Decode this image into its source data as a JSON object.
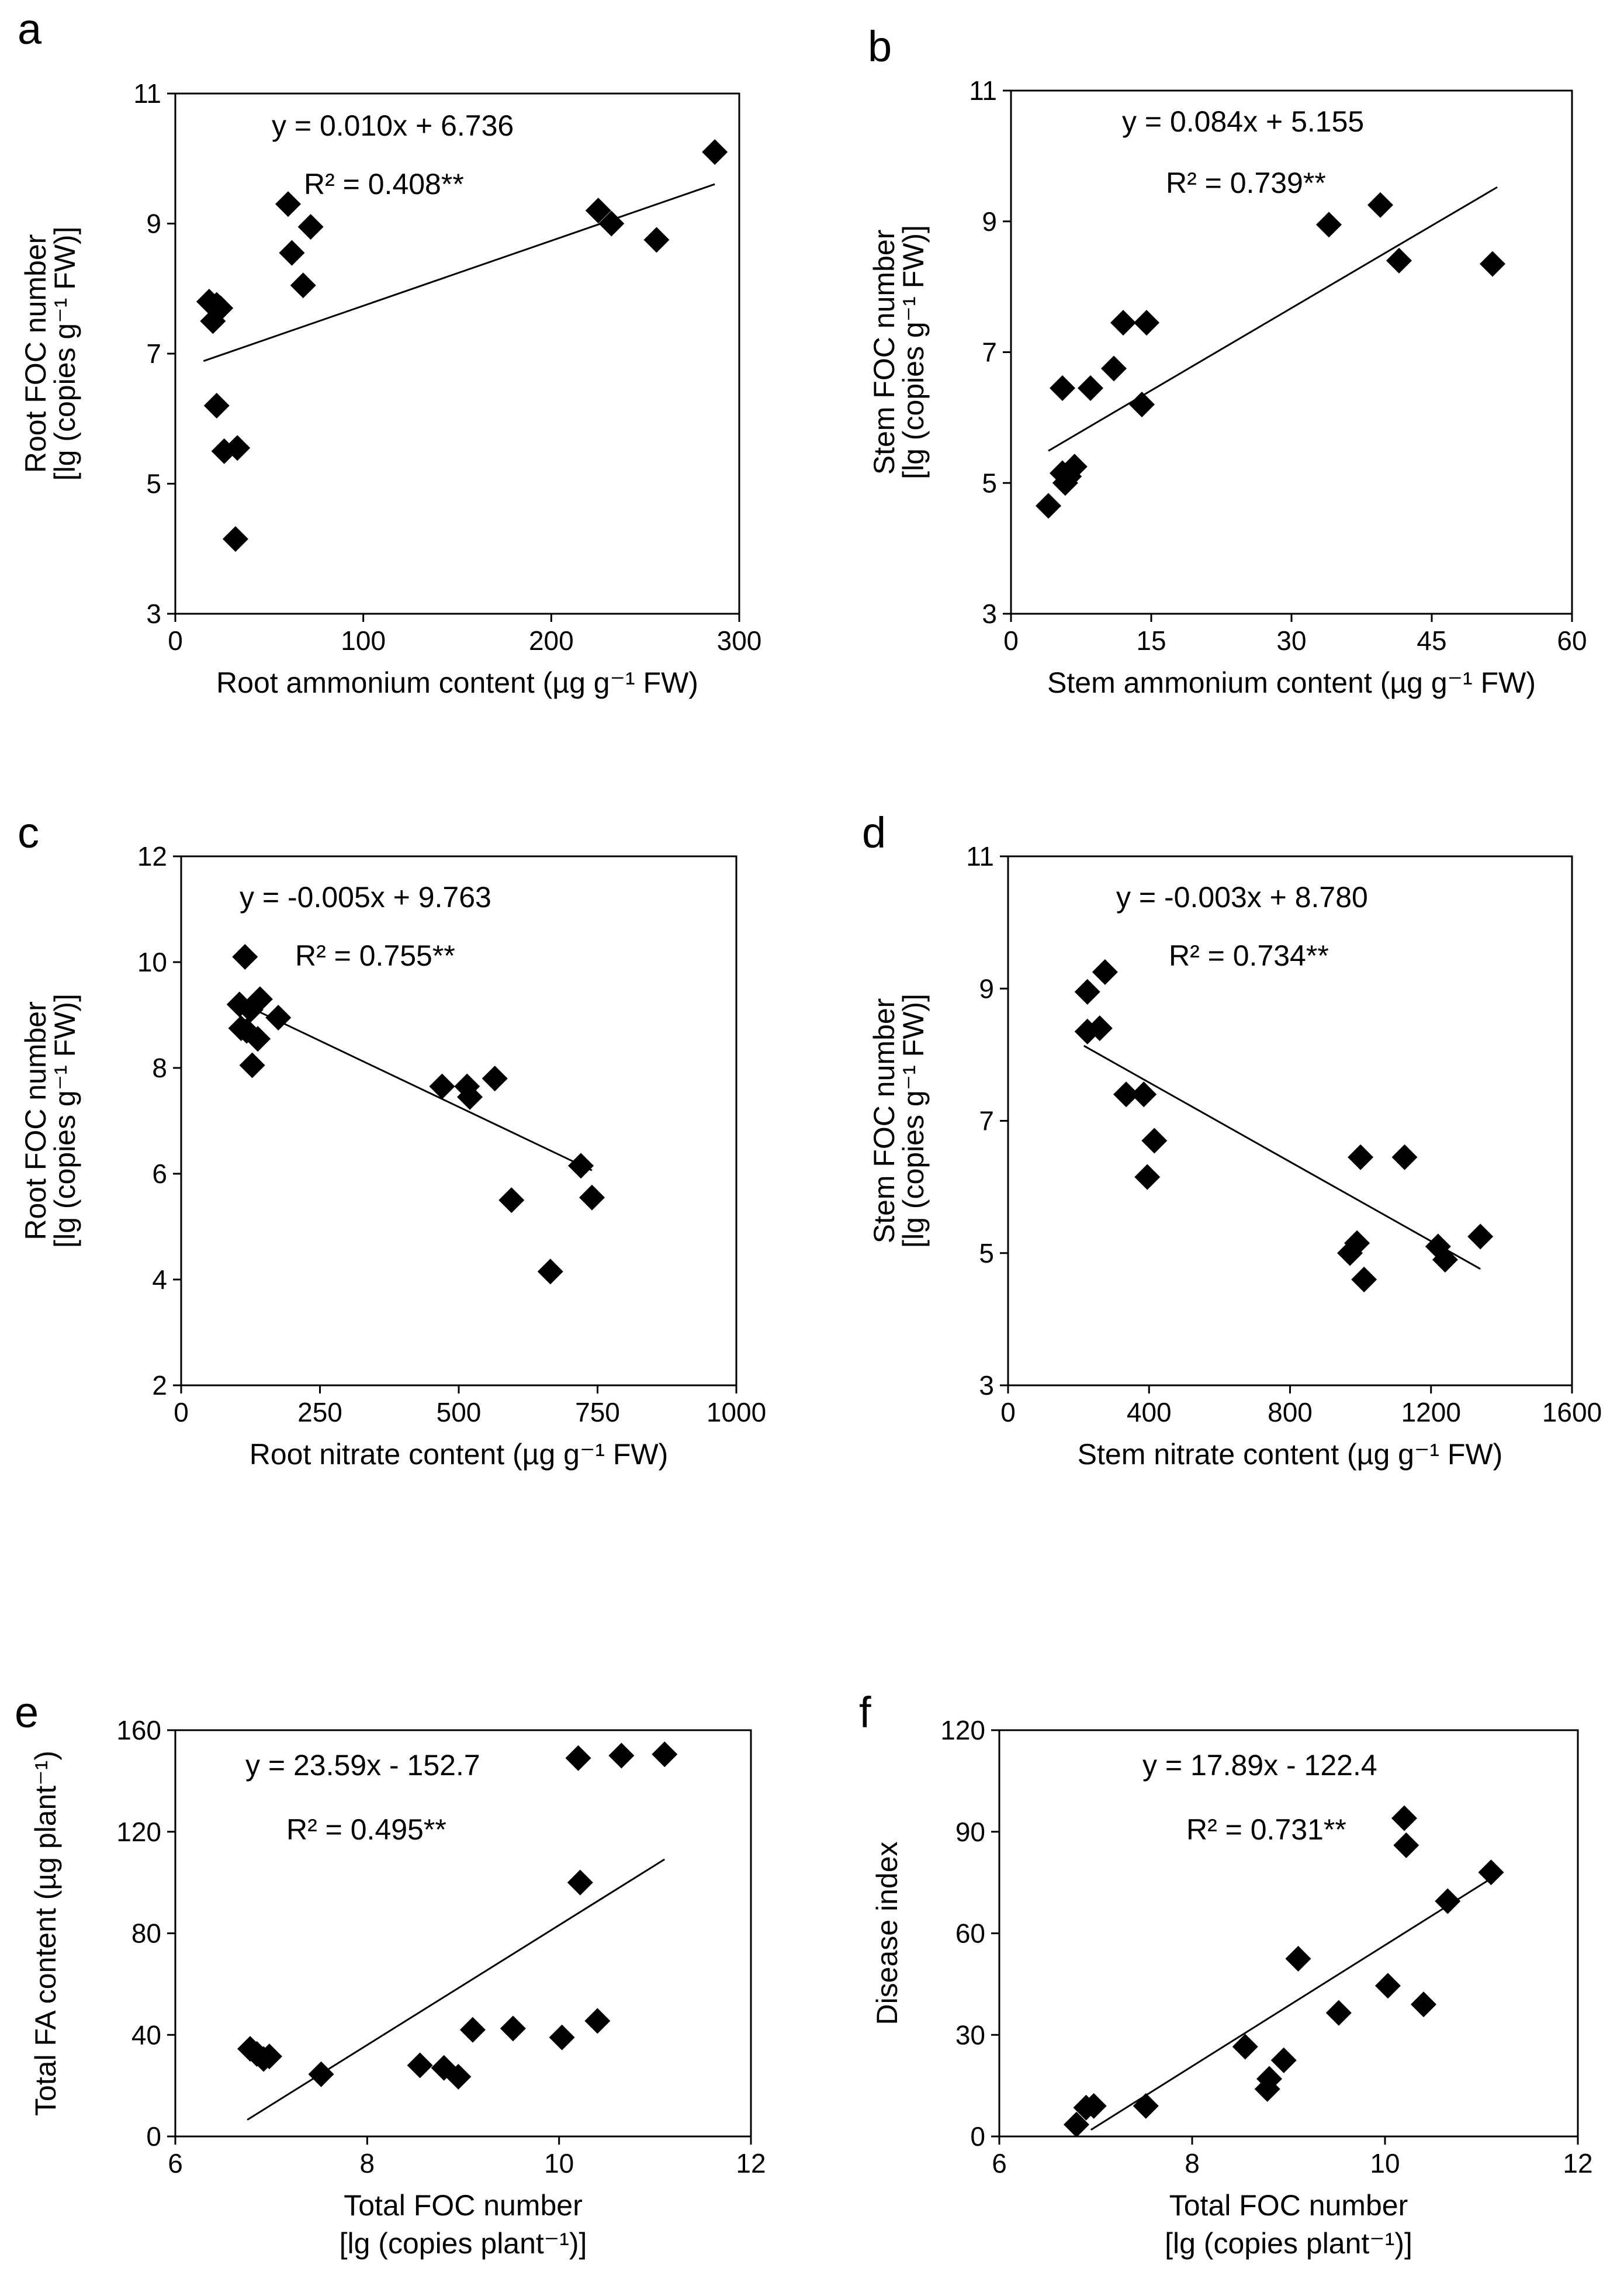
{
  "chart_data": [
    {
      "panel": "a",
      "type": "scatter",
      "xlabel": "Root ammonium content (µg g⁻¹ FW)",
      "ylabel": [
        "Root FOC number",
        "[lg (copies g⁻¹ FW)]"
      ],
      "xlim": [
        0,
        300
      ],
      "ylim": [
        3,
        11
      ],
      "xticks": [
        0,
        100,
        200,
        300
      ],
      "yticks": [
        3,
        5,
        7,
        9,
        11
      ],
      "equation": "y = 0.010x + 6.736",
      "r2": "R² = 0.408**",
      "trendline": {
        "slope": 0.01,
        "intercept": 6.736,
        "x_range": [
          15,
          287
        ]
      },
      "points": [
        [
          18,
          7.8
        ],
        [
          20,
          7.5
        ],
        [
          22,
          7.75
        ],
        [
          24,
          7.7
        ],
        [
          22,
          6.2
        ],
        [
          26,
          5.5
        ],
        [
          33,
          5.55
        ],
        [
          32,
          4.15
        ],
        [
          60,
          9.3
        ],
        [
          62,
          8.55
        ],
        [
          68,
          8.05
        ],
        [
          72,
          8.95
        ],
        [
          225,
          9.2
        ],
        [
          232,
          9.0
        ],
        [
          256,
          8.75
        ],
        [
          287,
          10.1
        ]
      ]
    },
    {
      "panel": "b",
      "type": "scatter",
      "xlabel": "Stem ammonium content (µg g⁻¹ FW)",
      "ylabel": [
        "Stem FOC number",
        "[lg (copies g⁻¹ FW)]"
      ],
      "xlim": [
        0,
        60
      ],
      "ylim": [
        3,
        11
      ],
      "xticks": [
        0,
        15,
        30,
        45,
        60
      ],
      "yticks": [
        3,
        5,
        7,
        9,
        11
      ],
      "equation": "y = 0.084x + 5.155",
      "r2": "R² = 0.739**",
      "trendline": {
        "slope": 0.084,
        "intercept": 5.155,
        "x_range": [
          4,
          52
        ]
      },
      "points": [
        [
          4,
          4.65
        ],
        [
          5.5,
          5.15
        ],
        [
          5.8,
          5.0
        ],
        [
          6.2,
          5.1
        ],
        [
          6.8,
          5.25
        ],
        [
          5.5,
          6.45
        ],
        [
          8.5,
          6.45
        ],
        [
          11,
          6.75
        ],
        [
          12,
          7.45
        ],
        [
          14.5,
          7.45
        ],
        [
          14,
          6.2
        ],
        [
          34,
          8.95
        ],
        [
          39.5,
          9.25
        ],
        [
          41.5,
          8.4
        ],
        [
          51.5,
          8.35
        ]
      ]
    },
    {
      "panel": "c",
      "type": "scatter",
      "xlabel": "Root nitrate content (µg g⁻¹ FW)",
      "ylabel": [
        "Root FOC number",
        "[lg (copies g⁻¹ FW)]"
      ],
      "xlim": [
        0,
        1000
      ],
      "ylim": [
        2,
        12
      ],
      "xticks": [
        0,
        250,
        500,
        750,
        1000
      ],
      "yticks": [
        2,
        4,
        6,
        8,
        10,
        12
      ],
      "equation": "y = -0.005x + 9.763",
      "r2": "R² = 0.755**",
      "trendline": {
        "slope": -0.005,
        "intercept": 9.763,
        "x_range": [
          100,
          740
        ]
      },
      "points": [
        [
          115,
          10.1
        ],
        [
          105,
          9.2
        ],
        [
          125,
          9.1
        ],
        [
          142,
          9.3
        ],
        [
          175,
          8.95
        ],
        [
          108,
          8.75
        ],
        [
          118,
          8.7
        ],
        [
          138,
          8.55
        ],
        [
          128,
          8.05
        ],
        [
          470,
          7.65
        ],
        [
          515,
          7.65
        ],
        [
          520,
          7.45
        ],
        [
          565,
          7.8
        ],
        [
          595,
          5.5
        ],
        [
          720,
          6.15
        ],
        [
          740,
          5.55
        ],
        [
          665,
          4.15
        ]
      ]
    },
    {
      "panel": "d",
      "type": "scatter",
      "xlabel": "Stem nitrate content (µg g⁻¹ FW)",
      "ylabel": [
        "Stem FOC number",
        "[lg (copies g⁻¹ FW)]"
      ],
      "xlim": [
        0,
        1600
      ],
      "ylim": [
        3,
        11
      ],
      "xticks": [
        0,
        400,
        800,
        1200,
        1600
      ],
      "yticks": [
        3,
        5,
        7,
        9,
        11
      ],
      "equation": "y = -0.003x + 8.780",
      "r2": "R² = 0.734**",
      "trendline": {
        "slope": -0.003,
        "intercept": 8.78,
        "x_range": [
          215,
          1340
        ]
      },
      "points": [
        [
          225,
          8.95
        ],
        [
          275,
          9.25
        ],
        [
          225,
          8.35
        ],
        [
          260,
          8.4
        ],
        [
          335,
          7.4
        ],
        [
          385,
          7.4
        ],
        [
          415,
          6.7
        ],
        [
          395,
          6.15
        ],
        [
          970,
          5.0
        ],
        [
          990,
          5.15
        ],
        [
          1000,
          6.45
        ],
        [
          1010,
          4.6
        ],
        [
          1125,
          6.45
        ],
        [
          1220,
          5.1
        ],
        [
          1240,
          4.9
        ],
        [
          1340,
          5.25
        ]
      ]
    },
    {
      "panel": "e",
      "type": "scatter",
      "xlabel": "Total FOC number",
      "xlabel2": "[lg (copies plant⁻¹)]",
      "ylabel": [
        "Total FA content (µg plant⁻¹)"
      ],
      "xlim": [
        6,
        12
      ],
      "ylim": [
        0,
        160
      ],
      "xticks": [
        6,
        8,
        10,
        12
      ],
      "yticks": [
        0,
        40,
        80,
        120,
        160
      ],
      "equation": "y = 23.59x - 152.7",
      "r2": "R² = 0.495**",
      "trendline": {
        "slope": 23.59,
        "intercept": -152.7,
        "x_range": [
          6.75,
          11.1
        ]
      },
      "points": [
        [
          6.78,
          34.5
        ],
        [
          6.85,
          32.5
        ],
        [
          6.92,
          30.5
        ],
        [
          6.98,
          31.5
        ],
        [
          7.52,
          24.5
        ],
        [
          8.55,
          28
        ],
        [
          8.8,
          27
        ],
        [
          8.95,
          23.5
        ],
        [
          9.1,
          42
        ],
        [
          9.52,
          42.5
        ],
        [
          10.03,
          39
        ],
        [
          10.4,
          45.5
        ],
        [
          10.22,
          100
        ],
        [
          10.2,
          149
        ],
        [
          10.65,
          150
        ],
        [
          11.1,
          150.5
        ]
      ]
    },
    {
      "panel": "f",
      "type": "scatter",
      "xlabel": "Total FOC number",
      "xlabel2": "[lg (copies plant⁻¹)]",
      "ylabel": [
        "Disease index"
      ],
      "xlim": [
        6,
        12
      ],
      "ylim": [
        0,
        120
      ],
      "xticks": [
        6,
        8,
        10,
        12
      ],
      "yticks": [
        0,
        30,
        60,
        90,
        120
      ],
      "equation": "y = 17.89x - 122.4",
      "r2": "R² = 0.731**",
      "trendline": {
        "slope": 17.89,
        "intercept": -122.4,
        "x_range": [
          6.95,
          11.1
        ]
      },
      "points": [
        [
          6.8,
          3.5
        ],
        [
          6.9,
          8.5
        ],
        [
          6.98,
          9
        ],
        [
          7.52,
          9
        ],
        [
          8.55,
          26.5
        ],
        [
          8.78,
          14
        ],
        [
          8.8,
          17
        ],
        [
          8.95,
          22.5
        ],
        [
          9.1,
          52.5
        ],
        [
          9.52,
          36.5
        ],
        [
          10.03,
          44.5
        ],
        [
          10.2,
          94
        ],
        [
          10.22,
          86
        ],
        [
          10.4,
          39
        ],
        [
          10.65,
          69.5
        ],
        [
          11.1,
          78
        ]
      ]
    }
  ]
}
